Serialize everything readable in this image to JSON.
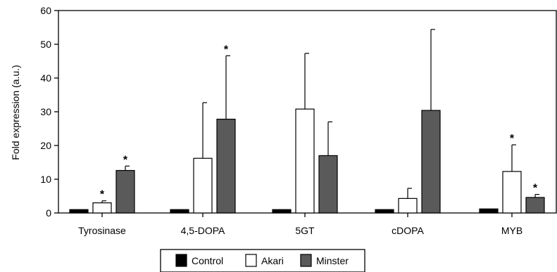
{
  "chart_data": {
    "type": "bar",
    "title": "",
    "xlabel": "",
    "ylabel": "Fold expression (a.u.)",
    "ylim": [
      0,
      60
    ],
    "yticks": [
      0,
      10,
      20,
      30,
      40,
      50,
      60
    ],
    "categories": [
      "Tyrosinase",
      "4,5-DOPA",
      "5GT",
      "cDOPA",
      "MYB"
    ],
    "legend_position": "bottom-center",
    "grid": false,
    "series": [
      {
        "name": "Control",
        "color": "#000000",
        "values": [
          1,
          1,
          1,
          1,
          1.2
        ],
        "errors": [
          0,
          0,
          0,
          0,
          0
        ],
        "significant": [
          false,
          false,
          false,
          false,
          false
        ]
      },
      {
        "name": "Akari",
        "color": "#ffffff",
        "values": [
          3,
          16.2,
          30.8,
          4.3,
          12.3
        ],
        "errors": [
          0.6,
          16.5,
          16.5,
          3,
          7.9
        ],
        "significant": [
          true,
          false,
          false,
          false,
          true
        ]
      },
      {
        "name": "Minster",
        "color": "#5a5a5a",
        "values": [
          12.6,
          27.8,
          17,
          30.4,
          4.6
        ],
        "errors": [
          1.3,
          18.8,
          10,
          24,
          0.9
        ],
        "significant": [
          true,
          true,
          false,
          false,
          true
        ]
      }
    ],
    "significance_marker": "*"
  }
}
